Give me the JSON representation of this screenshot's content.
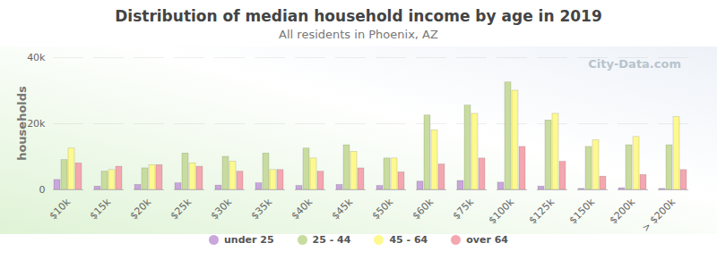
{
  "chart_data": {
    "type": "bar",
    "title": "Distribution of median household income by age in 2019",
    "subtitle": "All residents in Phoenix, AZ",
    "y_label": "households",
    "annotations": [
      "City-Data.com"
    ],
    "categories": [
      "$10k",
      "$15k",
      "$20k",
      "$25k",
      "$30k",
      "$35k",
      "$40k",
      "$45k",
      "$50k",
      "$60k",
      "$75k",
      "$100k",
      "$125k",
      "$150k",
      "$200k",
      "> $200k"
    ],
    "series": [
      {
        "name": "under 25",
        "color": "#c9a6dc",
        "values": [
          3000,
          1000,
          1500,
          2000,
          1300,
          2000,
          1200,
          1500,
          1200,
          2500,
          2700,
          2200,
          1000,
          300,
          500,
          300
        ]
      },
      {
        "name": "25 - 44",
        "color": "#c8dc9f",
        "values": [
          9000,
          5500,
          6500,
          11000,
          10000,
          11000,
          12500,
          13500,
          9500,
          22500,
          25500,
          32500,
          21000,
          13000,
          13500,
          13500
        ]
      },
      {
        "name": "45 - 64",
        "color": "#fdf98e",
        "values": [
          12500,
          6000,
          7500,
          8000,
          8500,
          6000,
          9500,
          11500,
          9500,
          18000,
          23000,
          30000,
          23000,
          15000,
          16000,
          22000
        ]
      },
      {
        "name": "over 64",
        "color": "#f4a7b0",
        "values": [
          8000,
          7000,
          7500,
          7000,
          5500,
          6000,
          5500,
          6500,
          5300,
          7700,
          9500,
          13000,
          8500,
          4000,
          4500,
          6000
        ]
      }
    ],
    "ylim": [
      0,
      40000
    ],
    "yticks": [
      0,
      {
        "value": 20000,
        "label": "20k"
      },
      {
        "value": 40000,
        "label": "40k"
      }
    ],
    "grid": true,
    "legend": "bottom"
  }
}
